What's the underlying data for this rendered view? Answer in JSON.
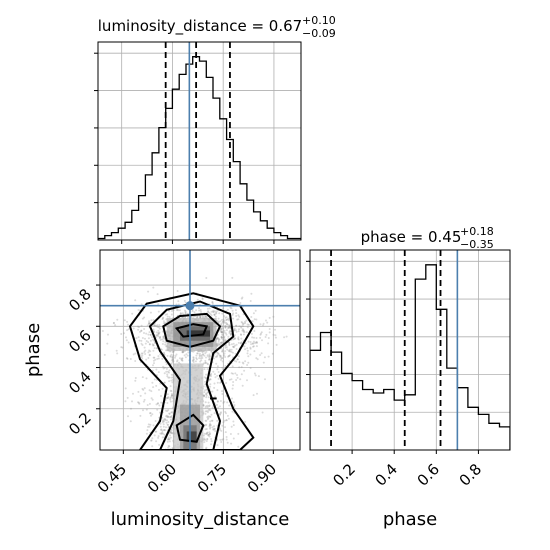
{
  "chart_data": [
    {
      "type": "histogram",
      "panel": "luminosity_distance marginal",
      "title": {
        "main": "luminosity_distance = 0.67",
        "plus": "+0.10",
        "minus": "−0.09"
      },
      "xlim": [
        0.38,
        0.98
      ],
      "bin_edges": [
        0.38,
        0.4,
        0.42,
        0.44,
        0.46,
        0.48,
        0.5,
        0.52,
        0.54,
        0.56,
        0.58,
        0.6,
        0.62,
        0.64,
        0.66,
        0.68,
        0.7,
        0.72,
        0.74,
        0.76,
        0.78,
        0.8,
        0.82,
        0.84,
        0.86,
        0.88,
        0.9,
        0.92,
        0.94,
        0.96,
        0.98
      ],
      "counts": [
        1,
        3,
        5,
        8,
        12,
        20,
        30,
        44,
        59,
        76,
        89,
        102,
        112,
        119,
        124,
        121,
        110,
        96,
        82,
        68,
        53,
        38,
        27,
        19,
        13,
        8,
        5,
        3,
        1,
        1
      ],
      "quantiles": [
        0.58,
        0.67,
        0.77
      ],
      "truth": 0.65,
      "grid": true
    },
    {
      "type": "histogram",
      "panel": "phase marginal",
      "title": {
        "main": "phase = 0.45",
        "plus": "+0.18",
        "minus": "−0.35"
      },
      "xlim": [
        0.0,
        0.95
      ],
      "bin_edges": [
        0.0,
        0.05,
        0.1,
        0.15,
        0.2,
        0.25,
        0.3,
        0.35,
        0.4,
        0.45,
        0.5,
        0.55,
        0.6,
        0.65,
        0.7,
        0.75,
        0.8,
        0.85,
        0.9,
        0.95
      ],
      "counts": [
        56,
        66,
        55,
        43,
        39,
        34,
        32,
        34,
        28,
        31,
        96,
        104,
        79,
        46,
        35,
        24,
        20,
        15,
        13
      ],
      "quantiles": [
        0.1,
        0.45,
        0.62
      ],
      "truth": 0.7,
      "grid": true
    },
    {
      "type": "scatter",
      "panel": "2D posterior",
      "xlim": [
        0.38,
        0.98
      ],
      "ylim": [
        0.0,
        0.97
      ],
      "truth": [
        0.65,
        0.7
      ],
      "contour_levels": 4,
      "grid": true
    }
  ],
  "axes": {
    "xlabel": "luminosity_distance",
    "ylabel": "phase",
    "xlabel_phase": "phase",
    "ld_ticks": [
      "0.45",
      "0.60",
      "0.75",
      "0.90"
    ],
    "phase_ticks": [
      "0.2",
      "0.4",
      "0.6",
      "0.8"
    ]
  },
  "colors": {
    "truth": "#4c7fae",
    "hist": "#000000",
    "grid": "#b0b0b0",
    "points": "#999999"
  }
}
